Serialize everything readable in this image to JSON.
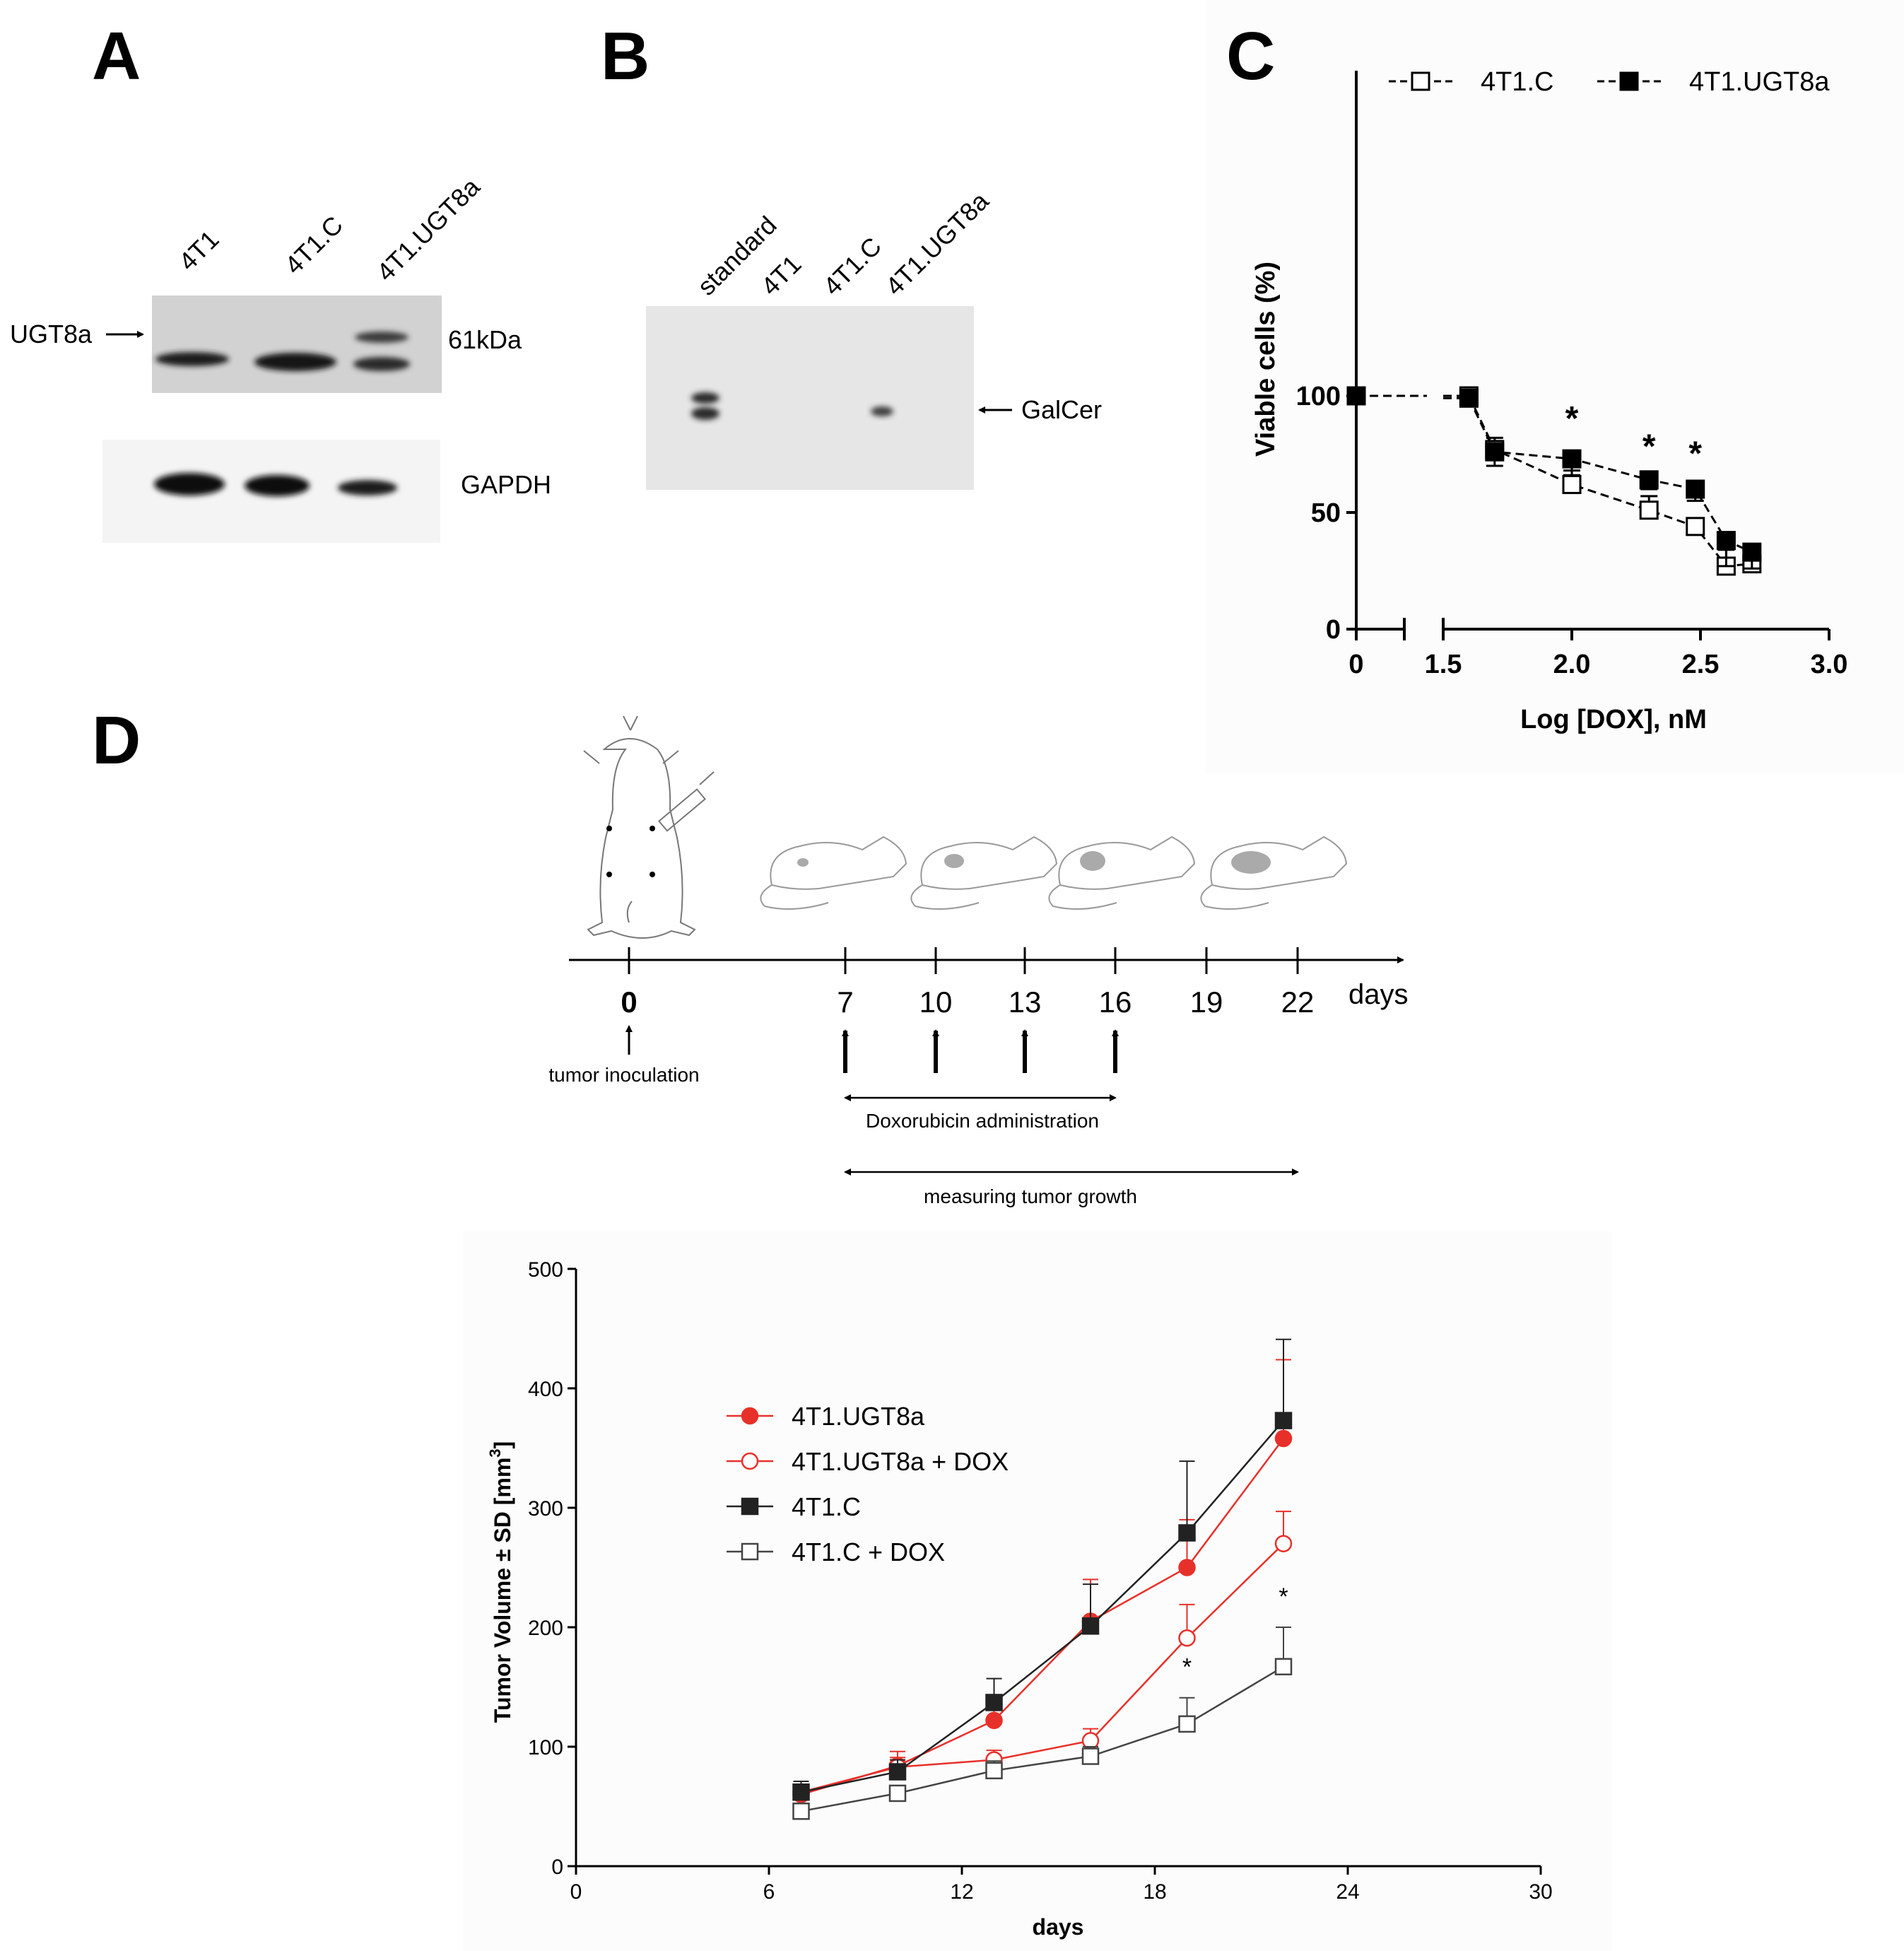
{
  "panels": {
    "a": {
      "letter": "A",
      "lanes": [
        "4T1",
        "4T1.C",
        "4T1.UGT8a"
      ],
      "protein_label": "UGT8a",
      "size_marker": "61kDa",
      "loading_control": "GAPDH"
    },
    "b": {
      "letter": "B",
      "lanes": [
        "standard",
        "4T1",
        "4T1.C",
        "4T1.UGT8a"
      ],
      "band_label": "GalCer"
    },
    "c": {
      "letter": "C",
      "chart_data": {
        "type": "line",
        "xlabel": "Log [DOX], nM",
        "ylabel": "Viable cells (%)",
        "xlim": [
          0,
          3.0
        ],
        "ylim": [
          0,
          100
        ],
        "x_ticks": [
          "0",
          "1.5",
          "2.0",
          "2.5",
          "3.0"
        ],
        "y_ticks": [
          "0",
          "50",
          "100"
        ],
        "axis_break": "between 0 and 1.5",
        "legend_placement": "top",
        "series": [
          {
            "name": "4T1.C",
            "marker": "open-square",
            "x": [
              0,
              1.6,
              1.7,
              2.0,
              2.3,
              2.48,
              2.6,
              2.7
            ],
            "y": [
              100,
              100,
              77,
              62,
              51,
              44,
              27,
              28
            ],
            "error": [
              0,
              1,
              5,
              6,
              6,
              3,
              7,
              7
            ]
          },
          {
            "name": "4T1.UGT8a",
            "marker": "filled-square",
            "x": [
              0,
              1.6,
              1.7,
              2.0,
              2.3,
              2.48,
              2.6,
              2.7
            ],
            "y": [
              100,
              99,
              76,
              73,
              64,
              60,
              38,
              33
            ],
            "error": [
              0,
              1,
              6,
              7,
              4,
              5,
              11,
              7
            ]
          }
        ],
        "significance_marks": [
          {
            "x": 2.0,
            "label": "*"
          },
          {
            "x": 2.3,
            "label": "*"
          },
          {
            "x": 2.48,
            "label": "*"
          }
        ]
      }
    },
    "d": {
      "letter": "D",
      "timeline": {
        "days": [
          "0",
          "7",
          "10",
          "13",
          "16",
          "19",
          "22"
        ],
        "unit_label": "days",
        "inoculation_label": "tumor inoculation",
        "treatment_label": "Doxorubicin administration",
        "measure_label": "measuring tumor growth"
      },
      "chart_data": {
        "type": "line",
        "xlabel": "days",
        "ylabel": "Tumor Volume ± SD [mm",
        "ylabel_sup": "3",
        "ylabel_end": "]",
        "xlim": [
          0,
          30
        ],
        "ylim": [
          0,
          500
        ],
        "x_ticks": [
          "0",
          "6",
          "12",
          "18",
          "24",
          "30"
        ],
        "y_ticks": [
          "0",
          "100",
          "200",
          "300",
          "400",
          "500"
        ],
        "legend_placement": "upper-left",
        "x": [
          7,
          10,
          13,
          16,
          19,
          22
        ],
        "series": [
          {
            "name": "4T1.UGT8a",
            "color": "#e8302a",
            "marker": "filled-circle",
            "values": [
              60,
              84,
              122,
              205,
              250,
              358
            ],
            "error": [
              8,
              12,
              12,
              35,
              40,
              66
            ]
          },
          {
            "name": "4T1.UGT8a + DOX",
            "color": "#e8302a",
            "marker": "open-circle",
            "values": [
              62,
              83,
              89,
              105,
              191,
              270
            ],
            "error": [
              6,
              8,
              8,
              10,
              28,
              27
            ]
          },
          {
            "name": "4T1.C",
            "color": "#222222",
            "marker": "filled-square",
            "values": [
              62,
              79,
              137,
              201,
              279,
              373
            ],
            "error": [
              9,
              10,
              20,
              35,
              60,
              68
            ]
          },
          {
            "name": "4T1.C + DOX",
            "color": "#444444",
            "marker": "open-square",
            "values": [
              46,
              61,
              80,
              92,
              119,
              167
            ],
            "error": [
              5,
              6,
              8,
              8,
              22,
              33
            ]
          }
        ],
        "significance_marks": [
          {
            "x": 19,
            "label": "*"
          },
          {
            "x": 22,
            "label": "*"
          }
        ]
      }
    }
  }
}
